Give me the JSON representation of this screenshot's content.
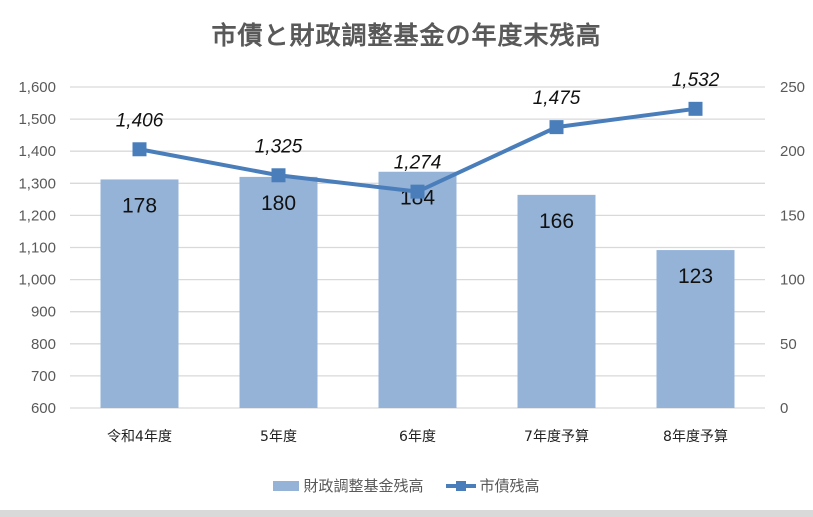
{
  "chart_data": {
    "type": "bar+line",
    "title": "市債と財政調整基金の年度末残高",
    "categories": [
      "令和4年度",
      "5年度",
      "6年度",
      "7年度予算",
      "8年度予算"
    ],
    "series": [
      {
        "name": "財政調整基金残高",
        "type": "bar",
        "axis": "right",
        "values": [
          178,
          180,
          184,
          166,
          123
        ],
        "labels": [
          "178",
          "180",
          "184",
          "166",
          "123"
        ],
        "color": "#95b3d7"
      },
      {
        "name": "市債残高",
        "type": "line",
        "axis": "left",
        "marker": "square",
        "values": [
          1406,
          1325,
          1274,
          1475,
          1532
        ],
        "labels": [
          "1,406",
          "1,325",
          "1,274",
          "1,475",
          "1,532"
        ],
        "color": "#4a7ebb"
      }
    ],
    "left_axis": {
      "ylim": [
        600,
        1600
      ],
      "ticks": [
        "600",
        "700",
        "800",
        "900",
        "1,000",
        "1,100",
        "1,200",
        "1,300",
        "1,400",
        "1,500",
        "1,600"
      ]
    },
    "right_axis": {
      "ylim": [
        0,
        250
      ],
      "ticks": [
        "0",
        "50",
        "100",
        "150",
        "200",
        "250"
      ]
    },
    "grid": true,
    "legend_position": "bottom",
    "xlabel": "",
    "ylabel": ""
  },
  "legend": {
    "bar_label": "財政調整基金残高",
    "line_label": "市債残高"
  }
}
